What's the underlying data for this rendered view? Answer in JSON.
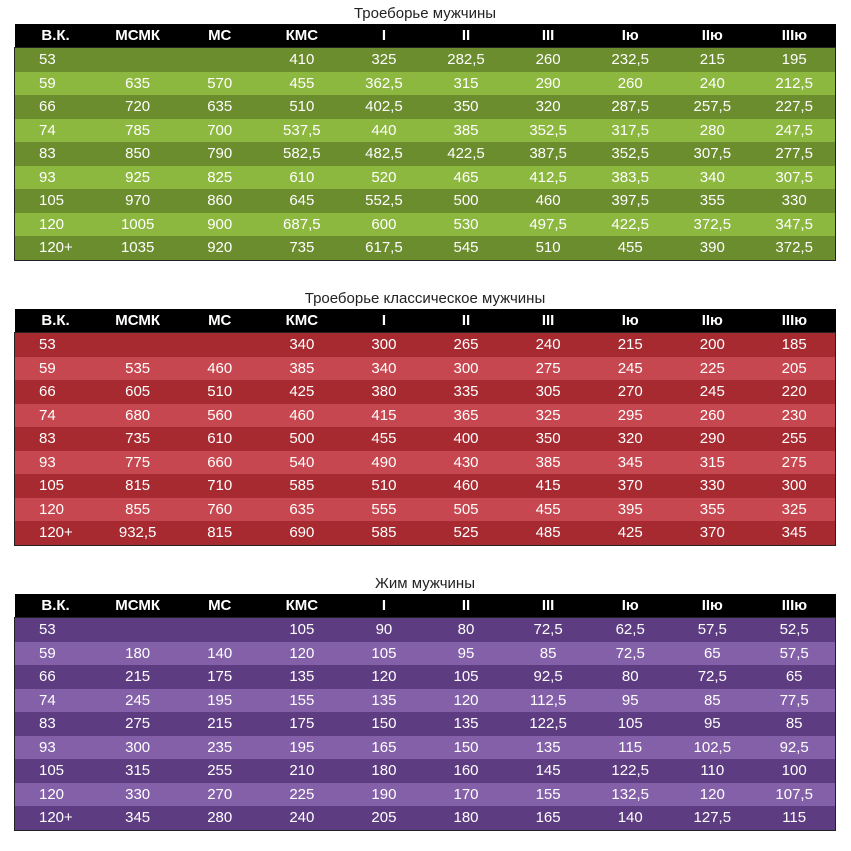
{
  "headers": [
    "В.К.",
    "МСМК",
    "МС",
    "КМС",
    "I",
    "II",
    "III",
    "Iю",
    "IIю",
    "IIIю"
  ],
  "colors": {
    "header_bg": "#000000",
    "green_dark": "#6b8d2d",
    "green_light": "#8db83f",
    "red_dark": "#a82a31",
    "red_light": "#c6474f",
    "purple_dark": "#5e3c82",
    "purple_light": "#8360a8"
  },
  "tables": [
    {
      "title": "Троеборье мужчины",
      "rows": [
        [
          "53",
          "",
          "",
          "410",
          "325",
          "282,5",
          "260",
          "232,5",
          "215",
          "195"
        ],
        [
          "59",
          "635",
          "570",
          "455",
          "362,5",
          "315",
          "290",
          "260",
          "240",
          "212,5"
        ],
        [
          "66",
          "720",
          "635",
          "510",
          "402,5",
          "350",
          "320",
          "287,5",
          "257,5",
          "227,5"
        ],
        [
          "74",
          "785",
          "700",
          "537,5",
          "440",
          "385",
          "352,5",
          "317,5",
          "280",
          "247,5"
        ],
        [
          "83",
          "850",
          "790",
          "582,5",
          "482,5",
          "422,5",
          "387,5",
          "352,5",
          "307,5",
          "277,5"
        ],
        [
          "93",
          "925",
          "825",
          "610",
          "520",
          "465",
          "412,5",
          "383,5",
          "340",
          "307,5"
        ],
        [
          "105",
          "970",
          "860",
          "645",
          "552,5",
          "500",
          "460",
          "397,5",
          "355",
          "330"
        ],
        [
          "120",
          "1005",
          "900",
          "687,5",
          "600",
          "530",
          "497,5",
          "422,5",
          "372,5",
          "347,5"
        ],
        [
          "120+",
          "1035",
          "920",
          "735",
          "617,5",
          "545",
          "510",
          "455",
          "390",
          "372,5"
        ]
      ]
    },
    {
      "title": "Троеборье классическое мужчины",
      "rows": [
        [
          "53",
          "",
          "",
          "340",
          "300",
          "265",
          "240",
          "215",
          "200",
          "185"
        ],
        [
          "59",
          "535",
          "460",
          "385",
          "340",
          "300",
          "275",
          "245",
          "225",
          "205"
        ],
        [
          "66",
          "605",
          "510",
          "425",
          "380",
          "335",
          "305",
          "270",
          "245",
          "220"
        ],
        [
          "74",
          "680",
          "560",
          "460",
          "415",
          "365",
          "325",
          "295",
          "260",
          "230"
        ],
        [
          "83",
          "735",
          "610",
          "500",
          "455",
          "400",
          "350",
          "320",
          "290",
          "255"
        ],
        [
          "93",
          "775",
          "660",
          "540",
          "490",
          "430",
          "385",
          "345",
          "315",
          "275"
        ],
        [
          "105",
          "815",
          "710",
          "585",
          "510",
          "460",
          "415",
          "370",
          "330",
          "300"
        ],
        [
          "120",
          "855",
          "760",
          "635",
          "555",
          "505",
          "455",
          "395",
          "355",
          "325"
        ],
        [
          "120+",
          "932,5",
          "815",
          "690",
          "585",
          "525",
          "485",
          "425",
          "370",
          "345"
        ]
      ]
    },
    {
      "title": "Жим мужчины",
      "rows": [
        [
          "53",
          "",
          "",
          "105",
          "90",
          "80",
          "72,5",
          "62,5",
          "57,5",
          "52,5"
        ],
        [
          "59",
          "180",
          "140",
          "120",
          "105",
          "95",
          "85",
          "72,5",
          "65",
          "57,5"
        ],
        [
          "66",
          "215",
          "175",
          "135",
          "120",
          "105",
          "92,5",
          "80",
          "72,5",
          "65"
        ],
        [
          "74",
          "245",
          "195",
          "155",
          "135",
          "120",
          "112,5",
          "95",
          "85",
          "77,5"
        ],
        [
          "83",
          "275",
          "215",
          "175",
          "150",
          "135",
          "122,5",
          "105",
          "95",
          "85"
        ],
        [
          "93",
          "300",
          "235",
          "195",
          "165",
          "150",
          "135",
          "115",
          "102,5",
          "92,5"
        ],
        [
          "105",
          "315",
          "255",
          "210",
          "180",
          "160",
          "145",
          "122,5",
          "110",
          "100"
        ],
        [
          "120",
          "330",
          "270",
          "225",
          "190",
          "170",
          "155",
          "132,5",
          "120",
          "107,5"
        ],
        [
          "120+",
          "345",
          "280",
          "240",
          "205",
          "180",
          "165",
          "140",
          "127,5",
          "115"
        ]
      ]
    }
  ]
}
